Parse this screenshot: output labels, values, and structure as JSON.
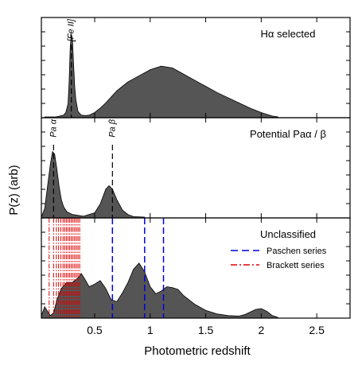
{
  "chart_data": {
    "type": "area",
    "xlabel": "Photometric redshift",
    "ylabel": "P(z) (arb)",
    "xlim": [
      0.02,
      2.8
    ],
    "xticks": [
      0.5,
      1.0,
      1.5,
      2.0,
      2.5
    ],
    "xtick_labels": [
      "0.5",
      "1",
      "1.5",
      "2",
      "2.5"
    ],
    "grid": false,
    "panels": [
      {
        "title": "Hα selected",
        "fill_color": "#555555",
        "x": [
          0.05,
          0.15,
          0.22,
          0.24,
          0.26,
          0.27,
          0.28,
          0.29,
          0.3,
          0.31,
          0.32,
          0.33,
          0.35,
          0.38,
          0.42,
          0.45,
          0.5,
          0.55,
          0.6,
          0.7,
          0.8,
          0.9,
          1.0,
          1.1,
          1.2,
          1.3,
          1.4,
          1.5,
          1.6,
          1.7,
          1.8,
          1.9,
          2.0,
          2.05,
          2.1,
          2.15
        ],
        "y": [
          0,
          0,
          0.02,
          0.05,
          0.15,
          0.4,
          0.8,
          0.95,
          0.88,
          0.6,
          0.35,
          0.2,
          0.06,
          0.02,
          0.015,
          0.02,
          0.05,
          0.1,
          0.16,
          0.3,
          0.4,
          0.47,
          0.54,
          0.58,
          0.56,
          0.49,
          0.42,
          0.35,
          0.28,
          0.22,
          0.16,
          0.1,
          0.05,
          0.03,
          0.01,
          0
        ],
        "markers": [
          {
            "z": 0.29,
            "label": "[Fe II]"
          }
        ]
      },
      {
        "title": "Potential Paα / β",
        "fill_color": "#555555",
        "x": [
          0.02,
          0.05,
          0.08,
          0.1,
          0.12,
          0.14,
          0.16,
          0.18,
          0.2,
          0.22,
          0.25,
          0.3,
          0.4,
          0.5,
          0.55,
          0.6,
          0.63,
          0.66,
          0.7,
          0.75,
          0.8,
          0.85,
          0.95
        ],
        "y": [
          0,
          0.1,
          0.4,
          0.6,
          0.75,
          0.72,
          0.55,
          0.35,
          0.2,
          0.12,
          0.06,
          0.03,
          0.01,
          0.05,
          0.15,
          0.32,
          0.36,
          0.32,
          0.2,
          0.08,
          0.03,
          0.005,
          0
        ],
        "markers": [
          {
            "z": 0.13,
            "label": "Pa α"
          },
          {
            "z": 0.66,
            "label": "Pa β"
          }
        ]
      },
      {
        "title": "Unclassified",
        "fill_color": "#555555",
        "x": [
          0.02,
          0.05,
          0.07,
          0.1,
          0.13,
          0.16,
          0.2,
          0.25,
          0.3,
          0.35,
          0.38,
          0.42,
          0.45,
          0.5,
          0.55,
          0.6,
          0.65,
          0.7,
          0.75,
          0.8,
          0.85,
          0.9,
          0.95,
          1.0,
          1.05,
          1.1,
          1.15,
          1.2,
          1.25,
          1.3,
          1.4,
          1.5,
          1.6,
          1.7,
          1.8,
          1.85,
          1.9,
          1.95,
          2.0,
          2.05,
          2.1,
          2.15
        ],
        "y": [
          0.02,
          0.12,
          0.08,
          0.02,
          0.05,
          0.2,
          0.33,
          0.4,
          0.4,
          0.45,
          0.5,
          0.42,
          0.35,
          0.38,
          0.42,
          0.33,
          0.2,
          0.18,
          0.28,
          0.4,
          0.55,
          0.62,
          0.52,
          0.35,
          0.27,
          0.3,
          0.35,
          0.34,
          0.32,
          0.25,
          0.15,
          0.08,
          0.04,
          0.02,
          0.015,
          0.03,
          0.06,
          0.09,
          0.1,
          0.07,
          0.02,
          0
        ],
        "paschen_lines": [
          0.66,
          0.95,
          1.12
        ],
        "brackett_lines": [
          0.09,
          0.13,
          0.155,
          0.175,
          0.195,
          0.215,
          0.23,
          0.245,
          0.26,
          0.275,
          0.29,
          0.305,
          0.32,
          0.335,
          0.35,
          0.365
        ],
        "legend": [
          {
            "label": "Paschen series",
            "color": "#0000dd",
            "style": "dashed"
          },
          {
            "label": "Brackett series",
            "color": "#dd0000",
            "style": "dash-dot"
          }
        ]
      }
    ]
  }
}
